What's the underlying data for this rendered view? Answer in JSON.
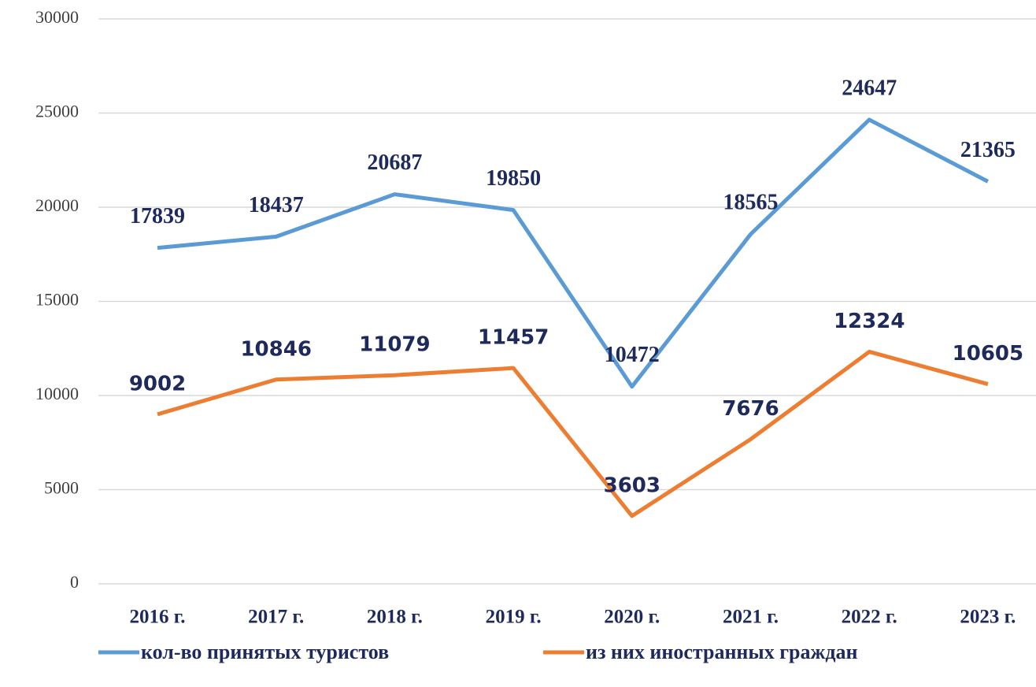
{
  "chart_data": {
    "type": "line",
    "categories": [
      "2016 г.",
      "2017 г.",
      "2018 г.",
      "2019 г.",
      "2020 г.",
      "2021 г.",
      "2022 г.",
      "2023 г."
    ],
    "series": [
      {
        "name": "кол-во принятых туристов",
        "color": "#5b9bd5",
        "values": [
          17839,
          18437,
          20687,
          19850,
          10472,
          18565,
          24647,
          21365
        ]
      },
      {
        "name": "из них иностранных граждан",
        "color": "#ed7d31",
        "values": [
          9002,
          10846,
          11079,
          11457,
          3603,
          7676,
          12324,
          10605
        ]
      }
    ],
    "ylim": [
      0,
      30000
    ],
    "yticks": [
      0,
      5000,
      10000,
      15000,
      20000,
      25000,
      30000
    ],
    "grid": true
  }
}
